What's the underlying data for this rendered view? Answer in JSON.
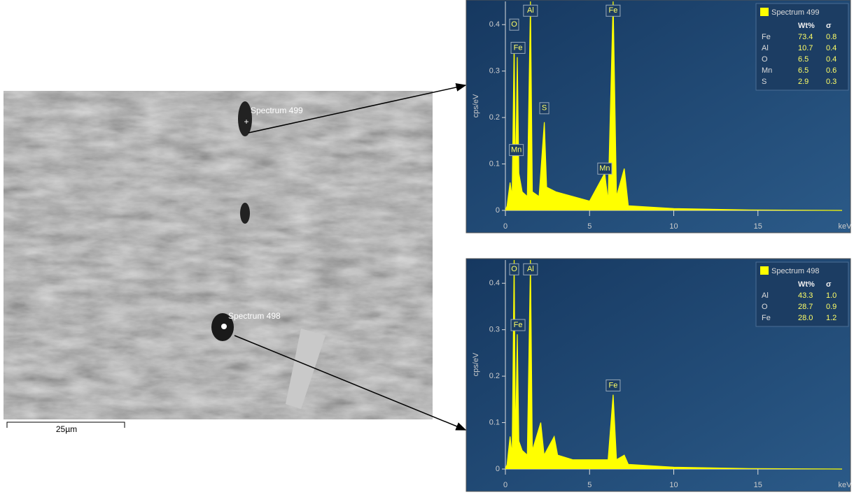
{
  "micrograph": {
    "labels": [
      "Spectrum 499",
      "Spectrum 498"
    ],
    "scale_bar": "25µm"
  },
  "chart_data": [
    {
      "type": "line",
      "xlabel": "keV",
      "ylabel": "cps/eV",
      "x": [
        0,
        0.1,
        0.28,
        0.4,
        0.52,
        0.6,
        0.705,
        0.8,
        1.0,
        1.3,
        1.49,
        1.6,
        2.0,
        2.31,
        2.45,
        3,
        4,
        5,
        5.9,
        6.1,
        6.4,
        6.6,
        7.06,
        7.3,
        10,
        14.5,
        20
      ],
      "series": [
        {
          "name": "Spectrum 499",
          "color": "#ffff00",
          "values": [
            0,
            0.01,
            0.06,
            0.03,
            0.36,
            0.05,
            0.33,
            0.08,
            0.04,
            0.03,
            0.45,
            0.04,
            0.03,
            0.19,
            0.05,
            0.04,
            0.03,
            0.02,
            0.08,
            0.02,
            0.45,
            0.03,
            0.09,
            0.01,
            0.004,
            0.001,
            0
          ]
        }
      ],
      "peaks": [
        {
          "label": "O",
          "x": 0.52,
          "y": 0.4
        },
        {
          "label": "Fe",
          "x": 0.75,
          "y": 0.35
        },
        {
          "label": "Mn",
          "x": 0.65,
          "y": 0.13
        },
        {
          "label": "Al",
          "x": 1.49,
          "y": 0.43
        },
        {
          "label": "S",
          "x": 2.31,
          "y": 0.22
        },
        {
          "label": "Mn",
          "x": 5.9,
          "y": 0.09
        },
        {
          "label": "Fe",
          "x": 6.4,
          "y": 0.43
        }
      ],
      "legend_table": {
        "columns": [
          "Wt%",
          "σ"
        ],
        "rows": [
          [
            "Fe",
            "73.4",
            "0.8"
          ],
          [
            "Al",
            "10.7",
            "0.4"
          ],
          [
            "O",
            "6.5",
            "0.4"
          ],
          [
            "Mn",
            "6.5",
            "0.6"
          ],
          [
            "S",
            "2.9",
            "0.3"
          ]
        ]
      },
      "xlim": [
        0,
        20
      ],
      "xticks": [
        0,
        5,
        10,
        15
      ],
      "ylim": [
        0,
        0.45
      ],
      "yticks": [
        0,
        0.1,
        0.2,
        0.3,
        0.4
      ]
    },
    {
      "type": "line",
      "xlabel": "keV",
      "ylabel": "cps/eV",
      "x": [
        0,
        0.1,
        0.28,
        0.4,
        0.52,
        0.6,
        0.705,
        0.8,
        1.0,
        1.3,
        1.49,
        1.6,
        2.1,
        2.3,
        2.9,
        3.1,
        4,
        5,
        6.1,
        6.4,
        6.6,
        7.06,
        7.3,
        10,
        14.5,
        20
      ],
      "series": [
        {
          "name": "Spectrum 498",
          "color": "#ffff00",
          "values": [
            0,
            0.01,
            0.07,
            0.03,
            0.45,
            0.05,
            0.29,
            0.06,
            0.04,
            0.03,
            0.45,
            0.04,
            0.1,
            0.03,
            0.07,
            0.03,
            0.02,
            0.02,
            0.02,
            0.16,
            0.02,
            0.03,
            0.01,
            0.004,
            0.001,
            0
          ]
        }
      ],
      "peaks": [
        {
          "label": "O",
          "x": 0.52,
          "y": 0.43
        },
        {
          "label": "Al",
          "x": 1.49,
          "y": 0.43
        },
        {
          "label": "Fe",
          "x": 0.75,
          "y": 0.31
        },
        {
          "label": "Fe",
          "x": 6.4,
          "y": 0.18
        }
      ],
      "legend_table": {
        "columns": [
          "Wt%",
          "σ"
        ],
        "rows": [
          [
            "Al",
            "43.3",
            "1.0"
          ],
          [
            "O",
            "28.7",
            "0.9"
          ],
          [
            "Fe",
            "28.0",
            "1.2"
          ]
        ]
      },
      "xlim": [
        0,
        20
      ],
      "xticks": [
        0,
        5,
        10,
        15
      ],
      "ylim": [
        0,
        0.45
      ],
      "yticks": [
        0,
        0.1,
        0.2,
        0.3,
        0.4
      ]
    }
  ]
}
